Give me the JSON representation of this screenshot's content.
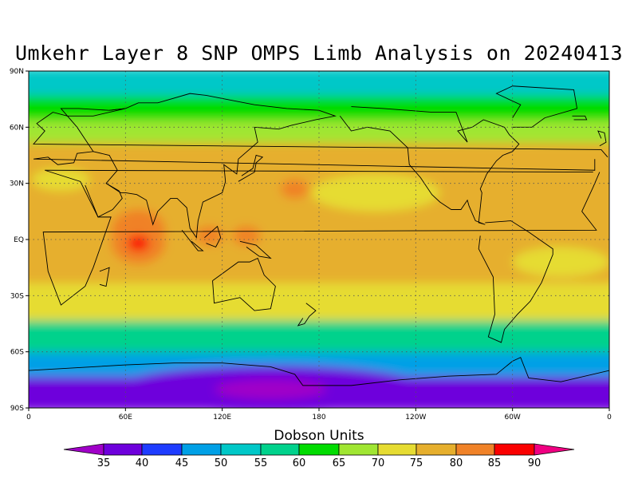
{
  "title": "Umkehr Layer 8 SNP OMPS Limb Analysis on 20240413",
  "colorbar": {
    "title": "Dobson Units",
    "levels": [
      "35",
      "40",
      "45",
      "50",
      "55",
      "60",
      "65",
      "70",
      "75",
      "80",
      "85",
      "90"
    ],
    "colors": [
      "#a000c8",
      "#6e00dc",
      "#1e3cff",
      "#00a0e6",
      "#00c8c8",
      "#00d28c",
      "#00dc00",
      "#a0e632",
      "#e6dc32",
      "#e6af2d",
      "#f08228",
      "#fa0000",
      "#f00082"
    ]
  },
  "axes": {
    "y_ticks": [
      "90N",
      "60N",
      "30N",
      "EQ",
      "30S",
      "60S",
      "90S"
    ],
    "x_ticks": [
      "0",
      "60E",
      "120E",
      "180",
      "120W",
      "60W",
      "0"
    ]
  },
  "chart_data": {
    "type": "heatmap",
    "title": "Umkehr Layer 8 SNP OMPS Limb Analysis on 20240413",
    "colorbar_label": "Dobson Units",
    "units": "DU",
    "xlim": [
      0,
      360
    ],
    "ylim": [
      -90,
      90
    ],
    "zonal_bands": [
      {
        "lat_range": [
          75,
          90
        ],
        "value_range": [
          50,
          55
        ]
      },
      {
        "lat_range": [
          62,
          75
        ],
        "value_range": [
          60,
          65
        ]
      },
      {
        "lat_range": [
          50,
          62
        ],
        "value_range": [
          65,
          70
        ]
      },
      {
        "lat_range": [
          -25,
          50
        ],
        "value_range": [
          75,
          80
        ]
      },
      {
        "lat_range": [
          -45,
          -25
        ],
        "value_range": [
          65,
          75
        ]
      },
      {
        "lat_range": [
          -62,
          -45
        ],
        "value_range": [
          55,
          60
        ]
      },
      {
        "lat_range": [
          -75,
          -62
        ],
        "value_range": [
          45,
          50
        ]
      },
      {
        "lat_range": [
          -90,
          -75
        ],
        "value_range": [
          35,
          40
        ]
      }
    ],
    "maxima": [
      {
        "lon": 68,
        "lat": 5,
        "value_range": [
          85,
          90
        ]
      },
      {
        "lon": 68,
        "lat": -2,
        "value_range": [
          85,
          90
        ]
      },
      {
        "lon": 165,
        "lat": 27,
        "value_range": [
          80,
          85
        ]
      },
      {
        "lon": 112,
        "lat": 2,
        "value_range": [
          80,
          85
        ]
      },
      {
        "lon": 135,
        "lat": 2,
        "value_range": [
          80,
          85
        ]
      }
    ],
    "minimum": {
      "lon": 150,
      "lat": -80,
      "value_range": [
        35,
        40
      ]
    }
  }
}
